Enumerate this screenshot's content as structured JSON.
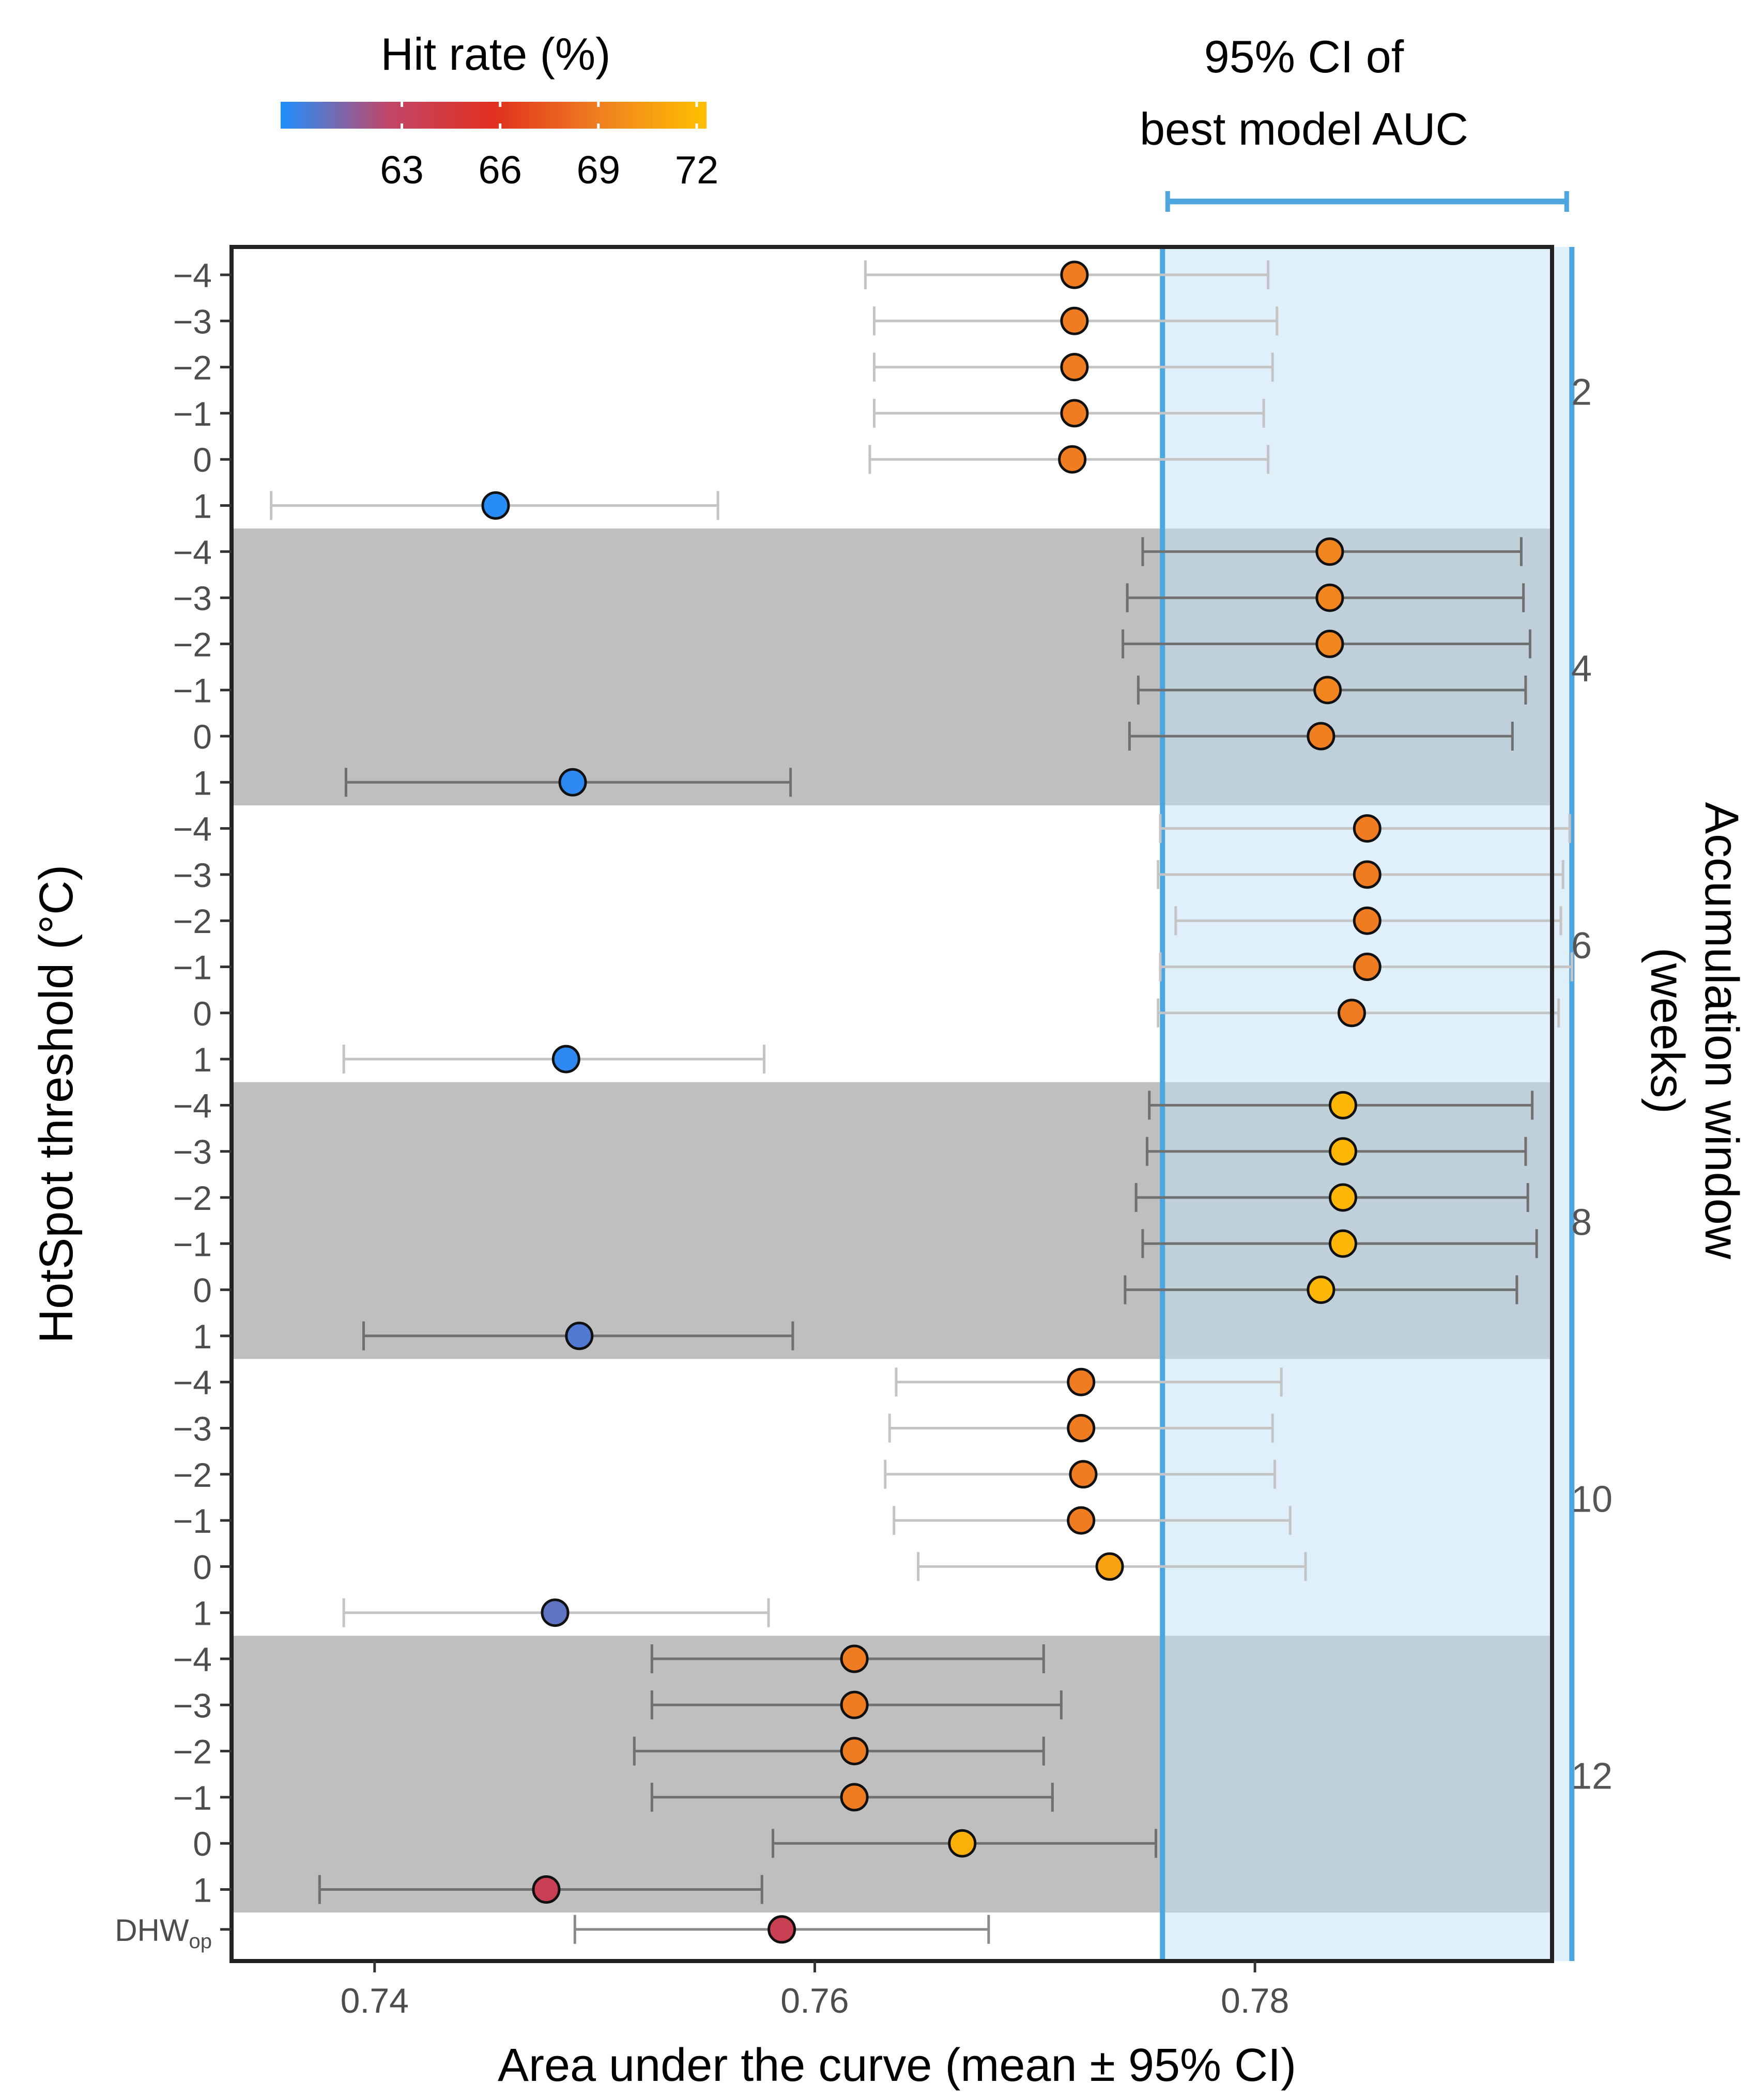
{
  "chart_data": {
    "type": "scatter",
    "title": "",
    "xlabel": "Area under the curve (mean ± 95% CI)",
    "ylabel_left": "HotSpot threshold (°C)",
    "ylabel_right_line1": "Accumulation window",
    "ylabel_right_line2": "(weeks)",
    "xlim": [
      0.7335,
      0.7935
    ],
    "xticks": [
      0.74,
      0.76,
      0.78
    ],
    "xtick_labels": [
      "0.74",
      "0.76",
      "0.78"
    ],
    "ci_band": {
      "lower": 0.7758,
      "upper": 0.7944,
      "label_line1": "95% CI of",
      "label_line2": "best model AUC",
      "color": "#4da6e0"
    },
    "colorbar": {
      "title": "Hit rate (%)",
      "range": [
        59.3,
        72.3
      ],
      "ticks": [
        63,
        66,
        69,
        72
      ],
      "tick_labels": [
        "63",
        "66",
        "69",
        "72"
      ],
      "colors": [
        "#1e90ff",
        "#c0476a",
        "#e0301e",
        "#f08020",
        "#ffc000"
      ]
    },
    "shade_color": "#bfbfbf",
    "groups": [
      {
        "window": "2",
        "shaded": false,
        "points": [
          {
            "threshold": "-4",
            "mean": 0.7718,
            "lo": 0.7623,
            "hi": 0.7806,
            "hit_rate": 68.9
          },
          {
            "threshold": "-3",
            "mean": 0.7718,
            "lo": 0.7627,
            "hi": 0.781,
            "hit_rate": 68.9
          },
          {
            "threshold": "-2",
            "mean": 0.7718,
            "lo": 0.7627,
            "hi": 0.7808,
            "hit_rate": 68.9
          },
          {
            "threshold": "-1",
            "mean": 0.7718,
            "lo": 0.7627,
            "hi": 0.7804,
            "hit_rate": 68.9
          },
          {
            "threshold": "0",
            "mean": 0.7717,
            "lo": 0.7625,
            "hi": 0.7806,
            "hit_rate": 68.9
          },
          {
            "threshold": "1",
            "mean": 0.7455,
            "lo": 0.7353,
            "hi": 0.7556,
            "hit_rate": 59.5
          }
        ]
      },
      {
        "window": "4",
        "shaded": true,
        "points": [
          {
            "threshold": "-4",
            "mean": 0.7834,
            "lo": 0.7749,
            "hi": 0.7921,
            "hit_rate": 69.3
          },
          {
            "threshold": "-3",
            "mean": 0.7834,
            "lo": 0.7742,
            "hi": 0.7922,
            "hit_rate": 69.3
          },
          {
            "threshold": "-2",
            "mean": 0.7834,
            "lo": 0.774,
            "hi": 0.7925,
            "hit_rate": 69.3
          },
          {
            "threshold": "-1",
            "mean": 0.7833,
            "lo": 0.7747,
            "hi": 0.7923,
            "hit_rate": 69.3
          },
          {
            "threshold": "0",
            "mean": 0.783,
            "lo": 0.7743,
            "hi": 0.7917,
            "hit_rate": 69.0
          },
          {
            "threshold": "1",
            "mean": 0.749,
            "lo": 0.7387,
            "hi": 0.7589,
            "hit_rate": 59.6
          }
        ]
      },
      {
        "window": "6",
        "shaded": false,
        "points": [
          {
            "threshold": "-4",
            "mean": 0.7851,
            "lo": 0.7757,
            "hi": 0.7943,
            "hit_rate": 68.9
          },
          {
            "threshold": "-3",
            "mean": 0.7851,
            "lo": 0.7756,
            "hi": 0.794,
            "hit_rate": 68.9
          },
          {
            "threshold": "-2",
            "mean": 0.7851,
            "lo": 0.7764,
            "hi": 0.7939,
            "hit_rate": 68.9
          },
          {
            "threshold": "-1",
            "mean": 0.7851,
            "lo": 0.7757,
            "hi": 0.7944,
            "hit_rate": 68.9
          },
          {
            "threshold": "0",
            "mean": 0.7844,
            "lo": 0.7756,
            "hi": 0.7938,
            "hit_rate": 68.9
          },
          {
            "threshold": "1",
            "mean": 0.7487,
            "lo": 0.7386,
            "hi": 0.7577,
            "hit_rate": 59.6
          }
        ]
      },
      {
        "window": "8",
        "shaded": true,
        "points": [
          {
            "threshold": "-4",
            "mean": 0.784,
            "lo": 0.7752,
            "hi": 0.7926,
            "hit_rate": 71.8
          },
          {
            "threshold": "-3",
            "mean": 0.784,
            "lo": 0.7751,
            "hi": 0.7923,
            "hit_rate": 71.8
          },
          {
            "threshold": "-2",
            "mean": 0.784,
            "lo": 0.7746,
            "hi": 0.7924,
            "hit_rate": 71.8
          },
          {
            "threshold": "-1",
            "mean": 0.784,
            "lo": 0.7749,
            "hi": 0.7928,
            "hit_rate": 71.8
          },
          {
            "threshold": "0",
            "mean": 0.783,
            "lo": 0.7741,
            "hi": 0.7919,
            "hit_rate": 71.8
          },
          {
            "threshold": "1",
            "mean": 0.7493,
            "lo": 0.7395,
            "hi": 0.759,
            "hit_rate": 60.3
          }
        ]
      },
      {
        "window": "10",
        "shaded": false,
        "points": [
          {
            "threshold": "-4",
            "mean": 0.7721,
            "lo": 0.7637,
            "hi": 0.7812,
            "hit_rate": 68.9
          },
          {
            "threshold": "-3",
            "mean": 0.7721,
            "lo": 0.7634,
            "hi": 0.7808,
            "hit_rate": 68.9
          },
          {
            "threshold": "-2",
            "mean": 0.7722,
            "lo": 0.7632,
            "hi": 0.7809,
            "hit_rate": 68.9
          },
          {
            "threshold": "-1",
            "mean": 0.7721,
            "lo": 0.7636,
            "hi": 0.7816,
            "hit_rate": 68.9
          },
          {
            "threshold": "0",
            "mean": 0.7734,
            "lo": 0.7647,
            "hi": 0.7823,
            "hit_rate": 70.8
          },
          {
            "threshold": "1",
            "mean": 0.7482,
            "lo": 0.7386,
            "hi": 0.7579,
            "hit_rate": 60.6
          }
        ]
      },
      {
        "window": "12",
        "shaded": true,
        "points": [
          {
            "threshold": "-4",
            "mean": 0.7618,
            "lo": 0.7526,
            "hi": 0.7704,
            "hit_rate": 68.9
          },
          {
            "threshold": "-3",
            "mean": 0.7618,
            "lo": 0.7526,
            "hi": 0.7712,
            "hit_rate": 68.9
          },
          {
            "threshold": "-2",
            "mean": 0.7618,
            "lo": 0.7518,
            "hi": 0.7704,
            "hit_rate": 68.9
          },
          {
            "threshold": "-1",
            "mean": 0.7618,
            "lo": 0.7526,
            "hi": 0.7708,
            "hit_rate": 68.9
          },
          {
            "threshold": "0",
            "mean": 0.7667,
            "lo": 0.7581,
            "hi": 0.7755,
            "hit_rate": 71.5
          },
          {
            "threshold": "1",
            "mean": 0.7478,
            "lo": 0.7375,
            "hi": 0.7576,
            "hit_rate": 63.5
          }
        ]
      }
    ],
    "operational": {
      "label_main": "DHW",
      "label_sub": "op",
      "mean": 0.7585,
      "lo": 0.7491,
      "hi": 0.7679,
      "hit_rate": 63.5
    }
  }
}
